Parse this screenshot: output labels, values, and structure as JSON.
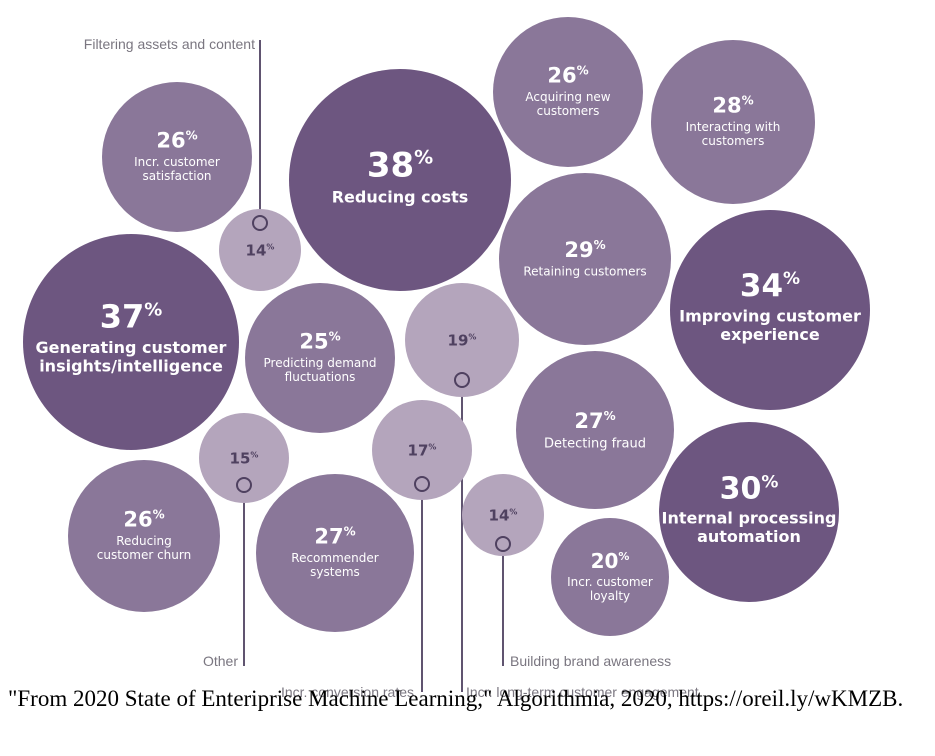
{
  "colors": {
    "dark": "#6d5680",
    "medium": "#8a7799",
    "light": "#b4a5bc",
    "connector": "#4f4160",
    "text_on_light": "#4f4160",
    "text_on_dark": "#ffffff",
    "external_label": "#7a7680"
  },
  "chart_data": {
    "type": "bubble",
    "unit": "%",
    "bubbles": [
      {
        "value": 38,
        "label": "Reducing costs"
      },
      {
        "value": 37,
        "label": "Generating customer insights/intelligence"
      },
      {
        "value": 34,
        "label": "Improving customer experience"
      },
      {
        "value": 30,
        "label": "Internal processing automation"
      },
      {
        "value": 29,
        "label": "Retaining customers"
      },
      {
        "value": 28,
        "label": "Interacting with customers"
      },
      {
        "value": 27,
        "label": "Detecting fraud"
      },
      {
        "value": 27,
        "label": "Recommender systems"
      },
      {
        "value": 26,
        "label": "Acquiring new customers"
      },
      {
        "value": 26,
        "label": "Incr. customer satisfaction"
      },
      {
        "value": 26,
        "label": "Reducing customer churn"
      },
      {
        "value": 25,
        "label": "Predicting demand fluctuations"
      },
      {
        "value": 20,
        "label": "Incr. customer loyalty"
      },
      {
        "value": 19,
        "label": "Incr. long-term customer engagement"
      },
      {
        "value": 17,
        "label": "Incr. conversion rates"
      },
      {
        "value": 15,
        "label": "Other"
      },
      {
        "value": 14,
        "label": "Filtering assets and content"
      },
      {
        "value": 14,
        "label": "Building brand awareness"
      }
    ]
  },
  "caption": "\"From 2020 State of Enteriprise Machine Learning,\" Algorithmia, 2020, https://oreil.ly/wKMZB."
}
